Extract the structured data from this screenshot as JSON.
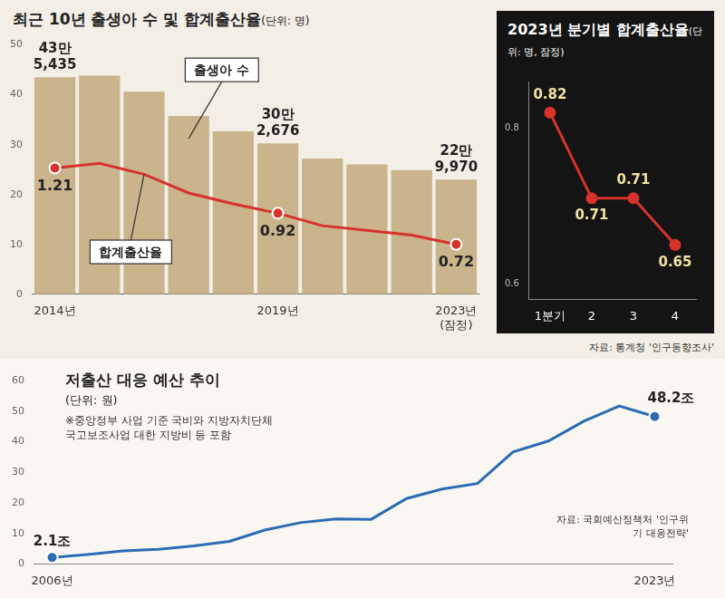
{
  "chart_data": [
    {
      "type": "bar",
      "title": "최근 10년 출생아 수 및 합계출산율",
      "subtitle": "(단위: 명)",
      "categories": [
        "2014년",
        null,
        null,
        null,
        null,
        "2019년",
        null,
        null,
        null,
        "2023년 (잠정)"
      ],
      "series": [
        {
          "name": "출생아 수",
          "type": "bar",
          "color": "#c9b48c",
          "values": [
            43.5435,
            43.842,
            40.6243,
            35.7771,
            32.6822,
            30.2676,
            27.2337,
            26.0562,
            24.9186,
            22.997
          ],
          "value_labels": [
            "43만 5,435",
            null,
            null,
            null,
            null,
            "30만 2,676",
            null,
            null,
            null,
            "22만 9,970"
          ]
        },
        {
          "name": "합계출산율",
          "type": "line",
          "axis": "y2",
          "color": "#d7322c",
          "marker": "circle",
          "values": [
            1.21,
            1.24,
            1.17,
            1.05,
            0.98,
            0.92,
            0.84,
            0.81,
            0.78,
            0.72
          ],
          "value_labels": [
            "1.21",
            null,
            null,
            null,
            null,
            "0.92",
            null,
            null,
            null,
            "0.72"
          ]
        }
      ],
      "ylim": [
        0,
        50
      ],
      "yticks": [
        0,
        10,
        20,
        30,
        40,
        50
      ],
      "y2lim": [
        0.4,
        2.0
      ],
      "y2ticks": [],
      "grid": false,
      "data_labels": true
    },
    {
      "type": "line",
      "title": "2023년 분기별 합계출산율",
      "subtitle": "(단위: 명, 잠정)",
      "categories": [
        "1분기",
        "2",
        "3",
        "4"
      ],
      "values": [
        0.82,
        0.71,
        0.71,
        0.65
      ],
      "color": "#d7322c",
      "marker": "circle",
      "ylim": [
        0.58,
        0.86
      ],
      "yticks": [
        0.6,
        0.8
      ],
      "grid": false,
      "data_labels": true,
      "source": "자료: 통계청 '인구동향조사'"
    },
    {
      "type": "line",
      "title": "저출산 대응 예산 추이",
      "subtitle": "(단위: 원)",
      "note": "※중앙정부 사업 기준 국비와 지방자치단체 국고보조사업 대한 지방비 등 포함",
      "categories": [
        "2006년",
        null,
        null,
        null,
        null,
        null,
        null,
        null,
        null,
        null,
        null,
        null,
        null,
        null,
        null,
        null,
        null,
        "2023년"
      ],
      "values": [
        2.1,
        3.1,
        4.3,
        4.8,
        5.9,
        7.4,
        11.1,
        13.5,
        14.7,
        14.6,
        21.4,
        24.5,
        26.3,
        36.6,
        40.2,
        46.7,
        51.7,
        48.2
      ],
      "value_labels": [
        "2.1조",
        null,
        null,
        null,
        null,
        null,
        null,
        null,
        null,
        null,
        null,
        null,
        null,
        null,
        null,
        null,
        null,
        "48.2조"
      ],
      "color": "#2b6cb3",
      "marker": "circle",
      "ylim": [
        0,
        60
      ],
      "yticks": [
        0,
        10,
        20,
        30,
        40,
        50,
        60
      ],
      "grid": false,
      "data_labels": true,
      "source": "자료: 국회예산정책처 '인구위기 대응전략'"
    }
  ]
}
